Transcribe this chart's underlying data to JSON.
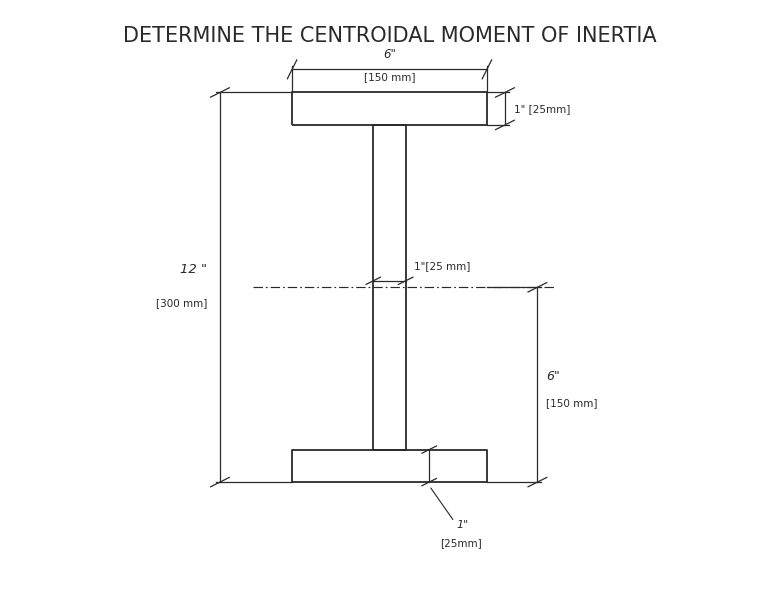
{
  "title": "DETERMINE THE CENTROIDAL MOMENT OF INERTIA",
  "title_fontsize": 15,
  "background_color": "#ffffff",
  "line_color": "#2a2a2a",
  "figure_size": [
    7.79,
    5.89
  ],
  "dpi": 100,
  "annotations": {
    "top_width_label": "6\"",
    "top_width_sublabel": "[150 mm]",
    "top_flange_height_label": "1\" [25mm]",
    "web_thickness_label": "1\"[25 mm]",
    "total_height_label": "12 \"",
    "total_height_sublabel": "[300 mm]",
    "bottom_flange_height_label": "1\"",
    "bottom_flange_height_sublabel": "[25mm]",
    "right_height_label": "6\"",
    "right_height_sublabel": "[150 mm]"
  }
}
